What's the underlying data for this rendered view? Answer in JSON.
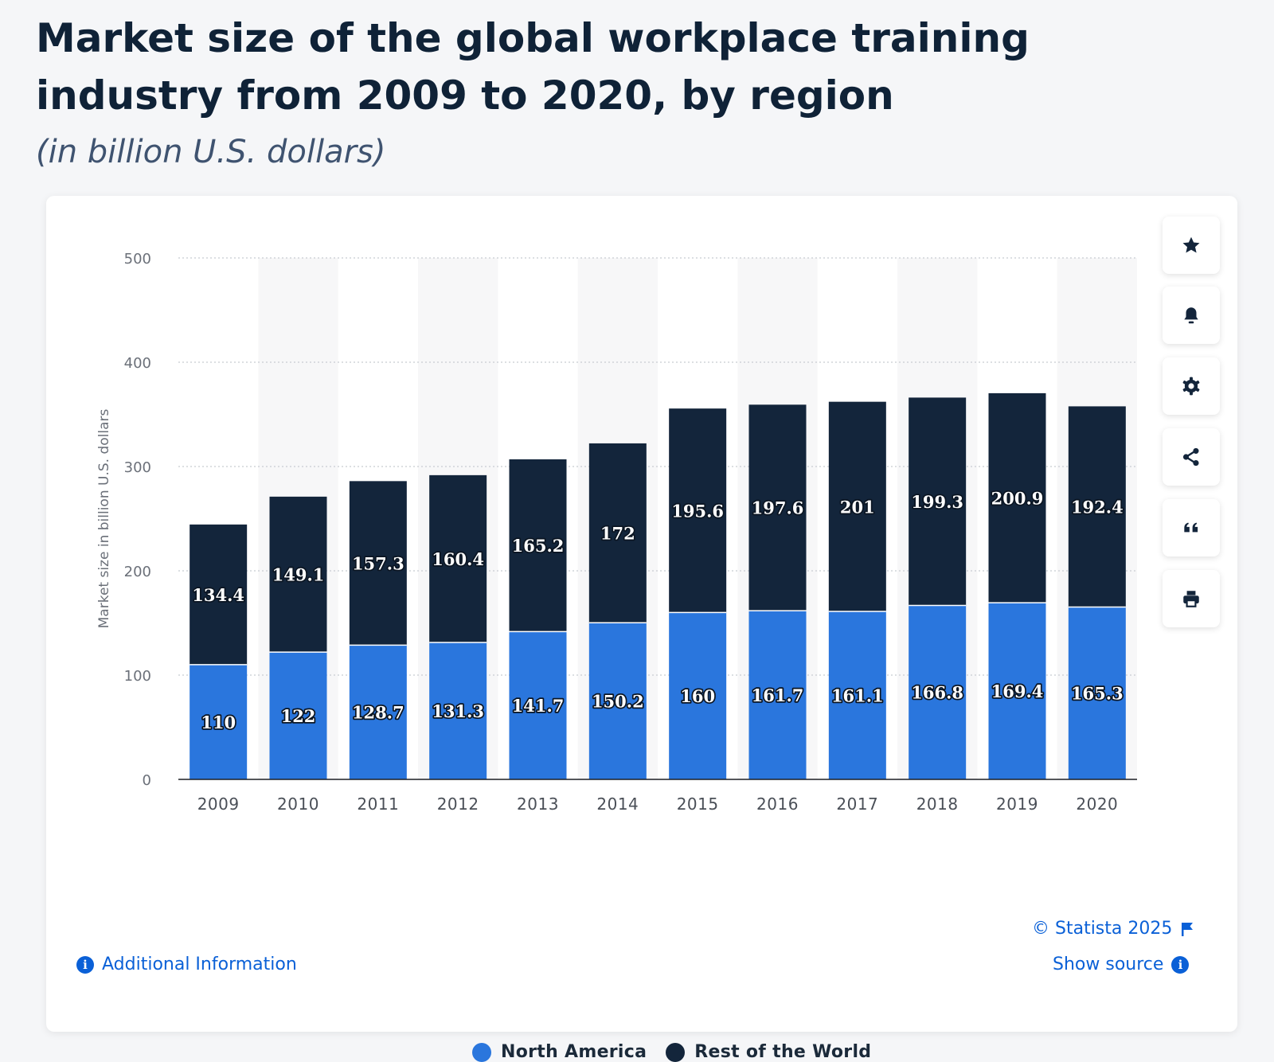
{
  "header": {
    "title": "Market size of the global workplace training industry from 2009 to 2020, by region",
    "subtitle": "(in billion U.S. dollars)"
  },
  "colors": {
    "north_america": "#2a76dd",
    "rest_of_world": "#13253b",
    "link": "#0a60d7"
  },
  "toolbar": {
    "icons": [
      "star-icon",
      "bell-icon",
      "gear-icon",
      "share-icon",
      "quote-icon",
      "print-icon"
    ]
  },
  "footer": {
    "additional_info": "Additional Information",
    "copyright": "© Statista 2025",
    "show_source": "Show source"
  },
  "chart_data": {
    "type": "bar",
    "stacked": true,
    "categories": [
      "2009",
      "2010",
      "2011",
      "2012",
      "2013",
      "2014",
      "2015",
      "2016",
      "2017",
      "2018",
      "2019",
      "2020"
    ],
    "series": [
      {
        "name": "North America",
        "values": [
          110,
          122,
          128.7,
          131.3,
          141.7,
          150.2,
          160,
          161.7,
          161.1,
          166.8,
          169.4,
          165.3
        ]
      },
      {
        "name": "Rest of the World",
        "values": [
          134.4,
          149.1,
          157.3,
          160.4,
          165.2,
          172,
          195.6,
          197.6,
          201,
          199.3,
          200.9,
          192.4
        ]
      }
    ],
    "ylabel": "Market size in billion U.S. dollars",
    "xlabel": "",
    "ylim": [
      0,
      500
    ],
    "yticks": [
      0,
      100,
      200,
      300,
      400,
      500
    ],
    "grid": true,
    "legend_position": "bottom"
  }
}
